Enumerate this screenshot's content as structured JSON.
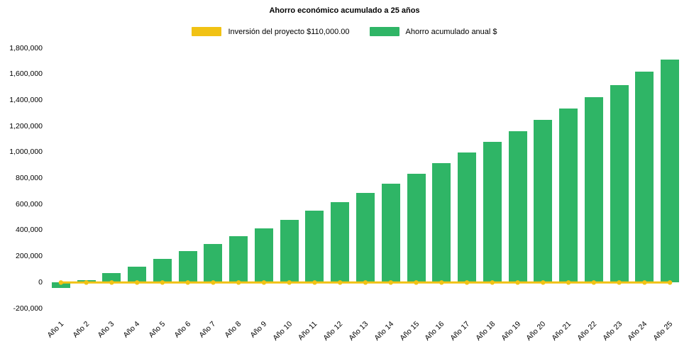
{
  "chart_data": {
    "type": "bar",
    "title": "Ahorro económico acumulado a 25 años",
    "categories": [
      "Año 1",
      "Año 2",
      "Año 3",
      "Año 4",
      "Año 5",
      "Año 6",
      "Año 7",
      "Año 8",
      "Año 9",
      "Año 10",
      "Año 11",
      "Año 12",
      "Año 13",
      "Año 14",
      "Año 15",
      "Año 16",
      "Año 17",
      "Año 18",
      "Año 19",
      "Año 20",
      "Año 21",
      "Año 22",
      "Año 23",
      "Año 24",
      "Año 25"
    ],
    "series": [
      {
        "name": "Inversión del proyecto $110,000.00",
        "type": "line",
        "color": "#F1C214",
        "constant_value": 0,
        "marker": "circle"
      },
      {
        "name": "Ahorro acumulado anual $",
        "type": "bar",
        "color": "#2FB566",
        "values": [
          -40000,
          20000,
          70000,
          120000,
          180000,
          240000,
          295000,
          355000,
          415000,
          480000,
          550000,
          615000,
          690000,
          760000,
          835000,
          915000,
          1000000,
          1080000,
          1160000,
          1250000,
          1335000,
          1425000,
          1515000,
          1620000,
          1715000
        ]
      }
    ],
    "xlabel": "",
    "ylabel": "",
    "ylim": [
      -200000,
      1800000
    ],
    "ytick_step": 200000,
    "grid": false,
    "legend_position": "top"
  }
}
